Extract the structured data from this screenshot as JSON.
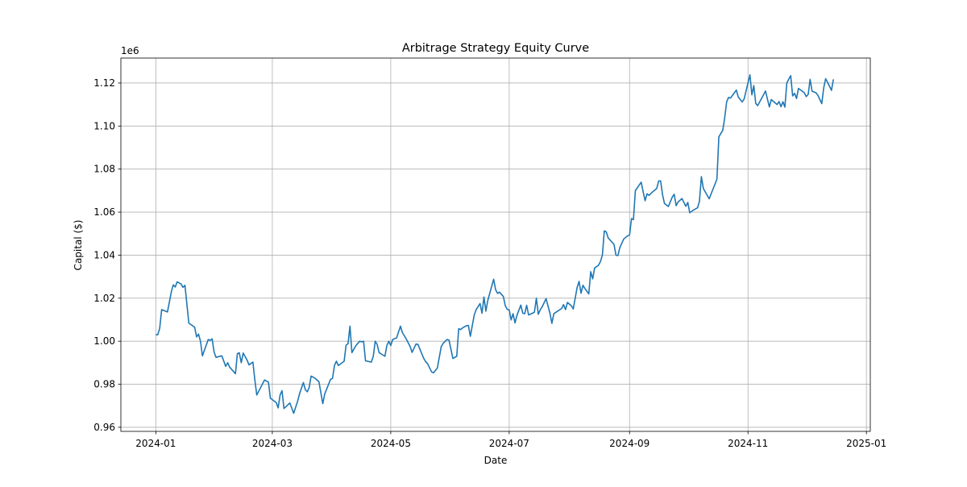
{
  "chart_data": {
    "type": "line",
    "title": "Arbitrage Strategy Equity Curve",
    "x_label": "Date",
    "y_label": "Capital ($)",
    "y_offset_label": "1e6",
    "grid": true,
    "xlim": [
      "2023-12-14",
      "2025-01-03"
    ],
    "xticks": [
      {
        "value": "2024-01-01",
        "label": "2024-01"
      },
      {
        "value": "2024-03-01",
        "label": "2024-03"
      },
      {
        "value": "2024-05-01",
        "label": "2024-05"
      },
      {
        "value": "2024-07-01",
        "label": "2024-07"
      },
      {
        "value": "2024-09-01",
        "label": "2024-09"
      },
      {
        "value": "2024-11-01",
        "label": "2024-11"
      },
      {
        "value": "2025-01-01",
        "label": "2025-01"
      }
    ],
    "ylim": [
      958100,
      1131600
    ],
    "yticks": [
      {
        "value": 960000,
        "label": "0.96"
      },
      {
        "value": 980000,
        "label": "0.98"
      },
      {
        "value": 1000000,
        "label": "1.00"
      },
      {
        "value": 1020000,
        "label": "1.02"
      },
      {
        "value": 1040000,
        "label": "1.04"
      },
      {
        "value": 1060000,
        "label": "1.06"
      },
      {
        "value": 1080000,
        "label": "1.08"
      },
      {
        "value": 1100000,
        "label": "1.10"
      },
      {
        "value": 1120000,
        "label": "1.12"
      }
    ],
    "x": [
      "2024-01-01",
      "2024-01-02",
      "2024-01-03",
      "2024-01-04",
      "2024-01-07",
      "2024-01-09",
      "2024-01-10",
      "2024-01-11",
      "2024-01-12",
      "2024-01-14",
      "2024-01-15",
      "2024-01-16",
      "2024-01-18",
      "2024-01-21",
      "2024-01-22",
      "2024-01-23",
      "2024-01-24",
      "2024-01-25",
      "2024-01-28",
      "2024-01-29",
      "2024-01-30",
      "2024-01-31",
      "2024-02-01",
      "2024-02-04",
      "2024-02-06",
      "2024-02-07",
      "2024-02-08",
      "2024-02-11",
      "2024-02-12",
      "2024-02-13",
      "2024-02-14",
      "2024-02-15",
      "2024-02-17",
      "2024-02-18",
      "2024-02-20",
      "2024-02-21",
      "2024-02-22",
      "2024-02-24",
      "2024-02-26",
      "2024-02-28",
      "2024-02-29",
      "2024-03-03",
      "2024-03-04",
      "2024-03-05",
      "2024-03-06",
      "2024-03-07",
      "2024-03-09",
      "2024-03-10",
      "2024-03-11",
      "2024-03-12",
      "2024-03-14",
      "2024-03-15",
      "2024-03-17",
      "2024-03-18",
      "2024-03-19",
      "2024-03-20",
      "2024-03-21",
      "2024-03-23",
      "2024-03-25",
      "2024-03-27",
      "2024-03-28",
      "2024-03-31",
      "2024-04-01",
      "2024-04-02",
      "2024-04-03",
      "2024-04-04",
      "2024-04-07",
      "2024-04-08",
      "2024-04-09",
      "2024-04-10",
      "2024-04-11",
      "2024-04-13",
      "2024-04-15",
      "2024-04-16",
      "2024-04-17",
      "2024-04-18",
      "2024-04-21",
      "2024-04-22",
      "2024-04-23",
      "2024-04-24",
      "2024-04-25",
      "2024-04-28",
      "2024-04-29",
      "2024-04-30",
      "2024-05-01",
      "2024-05-02",
      "2024-05-04",
      "2024-05-06",
      "2024-05-07",
      "2024-05-09",
      "2024-05-11",
      "2024-05-12",
      "2024-05-14",
      "2024-05-15",
      "2024-05-18",
      "2024-05-19",
      "2024-05-20",
      "2024-05-22",
      "2024-05-23",
      "2024-05-25",
      "2024-05-27",
      "2024-05-28",
      "2024-05-30",
      "2024-05-31",
      "2024-06-02",
      "2024-06-04",
      "2024-06-05",
      "2024-06-06",
      "2024-06-07",
      "2024-06-09",
      "2024-06-10",
      "2024-06-11",
      "2024-06-13",
      "2024-06-14",
      "2024-06-16",
      "2024-06-17",
      "2024-06-18",
      "2024-06-19",
      "2024-06-20",
      "2024-06-23",
      "2024-06-24",
      "2024-06-25",
      "2024-06-26",
      "2024-06-28",
      "2024-06-29",
      "2024-06-30",
      "2024-07-01",
      "2024-07-02",
      "2024-07-03",
      "2024-07-04",
      "2024-07-05",
      "2024-07-07",
      "2024-07-08",
      "2024-07-09",
      "2024-07-10",
      "2024-07-11",
      "2024-07-13",
      "2024-07-14",
      "2024-07-15",
      "2024-07-16",
      "2024-07-17",
      "2024-07-18",
      "2024-07-20",
      "2024-07-22",
      "2024-07-23",
      "2024-07-24",
      "2024-07-26",
      "2024-07-28",
      "2024-07-29",
      "2024-07-30",
      "2024-07-31",
      "2024-08-02",
      "2024-08-03",
      "2024-08-05",
      "2024-08-06",
      "2024-08-07",
      "2024-08-08",
      "2024-08-09",
      "2024-08-11",
      "2024-08-12",
      "2024-08-13",
      "2024-08-14",
      "2024-08-16",
      "2024-08-17",
      "2024-08-18",
      "2024-08-19",
      "2024-08-20",
      "2024-08-21",
      "2024-08-24",
      "2024-08-25",
      "2024-08-26",
      "2024-08-27",
      "2024-08-29",
      "2024-08-31",
      "2024-09-01",
      "2024-09-02",
      "2024-09-03",
      "2024-09-04",
      "2024-09-07",
      "2024-09-08",
      "2024-09-09",
      "2024-09-10",
      "2024-09-11",
      "2024-09-13",
      "2024-09-15",
      "2024-09-16",
      "2024-09-17",
      "2024-09-18",
      "2024-09-19",
      "2024-09-21",
      "2024-09-23",
      "2024-09-24",
      "2024-09-25",
      "2024-09-26",
      "2024-09-28",
      "2024-09-30",
      "2024-10-01",
      "2024-10-02",
      "2024-10-04",
      "2024-10-06",
      "2024-10-07",
      "2024-10-08",
      "2024-10-09",
      "2024-10-12",
      "2024-10-15",
      "2024-10-16",
      "2024-10-17",
      "2024-10-19",
      "2024-10-20",
      "2024-10-21",
      "2024-10-22",
      "2024-10-23",
      "2024-10-26",
      "2024-10-27",
      "2024-10-29",
      "2024-10-30",
      "2024-11-02",
      "2024-11-03",
      "2024-11-04",
      "2024-11-05",
      "2024-11-06",
      "2024-11-09",
      "2024-11-10",
      "2024-11-12",
      "2024-11-13",
      "2024-11-16",
      "2024-11-17",
      "2024-11-18",
      "2024-11-19",
      "2024-11-20",
      "2024-11-21",
      "2024-11-22",
      "2024-11-23",
      "2024-11-24",
      "2024-11-25",
      "2024-11-26",
      "2024-11-27",
      "2024-11-30",
      "2024-12-01",
      "2024-12-02",
      "2024-12-03",
      "2024-12-04",
      "2024-12-06",
      "2024-12-07",
      "2024-12-09",
      "2024-12-10",
      "2024-12-11",
      "2024-12-12",
      "2024-12-14",
      "2024-12-15"
    ],
    "series": [
      {
        "name": "Capital",
        "color": "#1f77b4",
        "values": [
          1003000,
          1003000,
          1006000,
          1014700,
          1013600,
          1023000,
          1026200,
          1025200,
          1027600,
          1026600,
          1025000,
          1026000,
          1008400,
          1006500,
          1002000,
          1003300,
          1000000,
          993200,
          1000800,
          1000400,
          1001100,
          995000,
          992500,
          993200,
          988300,
          990000,
          988000,
          984900,
          994200,
          994600,
          990000,
          994500,
          991200,
          989000,
          990300,
          982000,
          975000,
          978500,
          982000,
          981000,
          973500,
          971500,
          969000,
          975000,
          977000,
          968700,
          970400,
          971300,
          969000,
          966500,
          972000,
          975500,
          980800,
          977500,
          976500,
          978500,
          983800,
          982800,
          981200,
          971000,
          975500,
          982300,
          982700,
          988700,
          990700,
          988700,
          990700,
          998200,
          998800,
          1007000,
          994700,
          997900,
          1000000,
          999700,
          1000000,
          990900,
          990300,
          993000,
          1000000,
          998500,
          994700,
          993000,
          998000,
          1000000,
          998000,
          1000800,
          1001500,
          1007000,
          1004000,
          1001000,
          997500,
          994800,
          998700,
          998500,
          992000,
          990500,
          989500,
          985800,
          985300,
          987500,
          997500,
          999000,
          1000800,
          1000500,
          992000,
          993000,
          1005800,
          1005400,
          1006200,
          1007200,
          1007300,
          1002300,
          1012200,
          1014700,
          1017500,
          1013000,
          1020500,
          1014000,
          1019000,
          1028800,
          1024000,
          1022200,
          1022800,
          1020800,
          1016500,
          1014800,
          1014600,
          1009900,
          1012800,
          1008500,
          1012000,
          1016800,
          1013000,
          1012800,
          1016700,
          1012200,
          1013000,
          1013500,
          1020000,
          1012500,
          1014600,
          1016000,
          1019800,
          1013000,
          1008300,
          1012800,
          1014000,
          1015200,
          1017000,
          1014700,
          1018000,
          1016500,
          1015000,
          1025000,
          1027800,
          1022300,
          1026000,
          1024500,
          1022000,
          1032300,
          1029000,
          1034000,
          1035300,
          1037000,
          1040000,
          1051300,
          1050800,
          1048000,
          1045000,
          1040000,
          1039800,
          1043500,
          1047500,
          1049000,
          1049300,
          1057000,
          1056500,
          1070000,
          1073900,
          1069500,
          1065300,
          1068500,
          1067800,
          1069500,
          1071000,
          1074500,
          1074500,
          1068000,
          1064000,
          1062600,
          1067000,
          1068300,
          1063000,
          1064700,
          1066300,
          1062700,
          1064500,
          1059700,
          1061000,
          1062000,
          1065000,
          1076500,
          1071000,
          1066200,
          1073000,
          1075300,
          1095000,
          1098000,
          1103800,
          1111200,
          1113300,
          1113000,
          1116700,
          1113500,
          1111200,
          1112500,
          1123800,
          1114500,
          1118800,
          1110500,
          1109500,
          1114500,
          1116300,
          1108900,
          1112300,
          1110000,
          1111400,
          1109000,
          1111300,
          1108800,
          1120000,
          1121800,
          1123400,
          1114000,
          1115200,
          1112800,
          1117500,
          1115500,
          1113700,
          1114700,
          1121700,
          1116200,
          1115500,
          1114300,
          1110400,
          1117700,
          1122000,
          1120300,
          1116600,
          1121700
        ]
      }
    ]
  }
}
